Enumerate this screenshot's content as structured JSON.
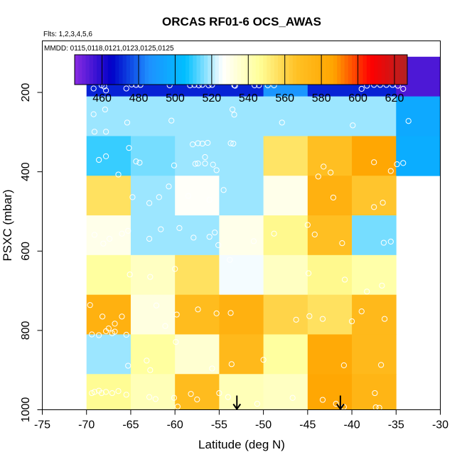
{
  "chart_data": {
    "type": "heatmap",
    "title": "ORCAS RF01-6 OCS_AWAS",
    "flights_label": "Flts: 1,2,3,4,5,6",
    "mmdd_label": "MMDD: 0115,0118,0121,0123,0125,0125",
    "xlabel": "Latitude (deg N)",
    "ylabel": "PSXC (mbar)",
    "xlim": [
      -75,
      -30
    ],
    "ylim": [
      1000,
      70
    ],
    "x_ticks": [
      -75,
      -70,
      -65,
      -60,
      -55,
      -50,
      -45,
      -40,
      -35,
      -30
    ],
    "x_tick_labels": [
      "-75",
      "-70",
      "-65",
      "-60",
      "-55",
      "-50",
      "-45",
      "-40",
      "-35",
      "-30"
    ],
    "y_ticks": [
      200,
      400,
      600,
      800,
      1000
    ],
    "y_tick_labels": [
      "200",
      "400",
      "600",
      "800",
      "1000"
    ],
    "lat_bins": [
      -70,
      -65,
      -60,
      -55,
      -50,
      -45,
      -40,
      -35,
      -30
    ],
    "pressure_bins": [
      110,
      210,
      310,
      410,
      510,
      610,
      710,
      810,
      910,
      1000
    ],
    "colorbar": {
      "range": [
        445,
        627
      ],
      "ticks": [
        460,
        480,
        500,
        520,
        540,
        560,
        580,
        600,
        620
      ],
      "tick_labels": [
        "460",
        "480",
        "500",
        "520",
        "540",
        "560",
        "580",
        "600",
        "620"
      ],
      "colors": [
        "#8a2be2",
        "#0000c8",
        "#1e90ff",
        "#00bfff",
        "#ffffff",
        "#ffff99",
        "#ffc125",
        "#ffa500",
        "#ff0000",
        "#b22222"
      ]
    },
    "values": [
      [
        470,
        470,
        470,
        470,
        488,
        470,
        470,
        454
      ],
      [
        518,
        518,
        518,
        518,
        518,
        518,
        518,
        496
      ],
      [
        510,
        515,
        518,
        518,
        555,
        568,
        585,
        498
      ],
      [
        556,
        518,
        527,
        518,
        530,
        578,
        565,
        null
      ],
      [
        530,
        518,
        518,
        530,
        548,
        568,
        515,
        null
      ],
      [
        545,
        538,
        556,
        525,
        538,
        548,
        543,
        null
      ],
      [
        578,
        532,
        570,
        578,
        560,
        556,
        572,
        null
      ],
      [
        518,
        545,
        535,
        572,
        545,
        583,
        572,
        null
      ],
      [
        547,
        540,
        570,
        540,
        538,
        585,
        575,
        null
      ]
    ],
    "points": [
      [
        -69.2,
        190
      ],
      [
        -68.3,
        182
      ],
      [
        -67.8,
        195
      ],
      [
        -68.0,
        185
      ],
      [
        -65.5,
        190
      ],
      [
        -64.9,
        180
      ],
      [
        -64.4,
        181
      ],
      [
        -63.9,
        181
      ],
      [
        -60.6,
        182
      ],
      [
        -58.3,
        182
      ],
      [
        -57.8,
        181
      ],
      [
        -57.3,
        182
      ],
      [
        -56.9,
        181
      ],
      [
        -56.2,
        182
      ],
      [
        -55.8,
        181
      ],
      [
        -53.3,
        182
      ],
      [
        -53.2,
        183
      ],
      [
        -51.0,
        182
      ],
      [
        -50.5,
        182
      ],
      [
        -49.5,
        182
      ],
      [
        -48.8,
        182
      ],
      [
        -38.9,
        191
      ],
      [
        -38.3,
        183
      ],
      [
        -37.5,
        181
      ],
      [
        -36.8,
        181
      ],
      [
        -36.1,
        181
      ],
      [
        -35.4,
        181
      ],
      [
        -34.8,
        183
      ],
      [
        -34.2,
        191
      ],
      [
        -69.2,
        255
      ],
      [
        -67.9,
        243
      ],
      [
        -69.1,
        299
      ],
      [
        -67.8,
        299
      ],
      [
        -65.4,
        276
      ],
      [
        -60.4,
        271
      ],
      [
        -53.5,
        243
      ],
      [
        -53.3,
        256
      ],
      [
        -47.9,
        276
      ],
      [
        -39.9,
        283
      ],
      [
        -33.6,
        272
      ],
      [
        -65.2,
        340
      ],
      [
        -64.4,
        374
      ],
      [
        -64.0,
        377
      ],
      [
        -68.6,
        370
      ],
      [
        -67.8,
        361
      ],
      [
        -60.1,
        384
      ],
      [
        -57.7,
        380
      ],
      [
        -57.4,
        379
      ],
      [
        -56.6,
        379
      ],
      [
        -55.7,
        382
      ],
      [
        -55.3,
        396
      ],
      [
        -58.0,
        331
      ],
      [
        -57.4,
        328
      ],
      [
        -56.9,
        329
      ],
      [
        -56.3,
        327
      ],
      [
        -56.6,
        363
      ],
      [
        -53.7,
        328
      ],
      [
        -53.4,
        329
      ],
      [
        -43.2,
        387
      ],
      [
        -42.4,
        402
      ],
      [
        -37.5,
        376
      ],
      [
        -34.9,
        381
      ],
      [
        -34.2,
        378
      ],
      [
        -35.6,
        398
      ],
      [
        -66.4,
        407
      ],
      [
        -64.8,
        464
      ],
      [
        -62.9,
        479
      ],
      [
        -61.8,
        464
      ],
      [
        -60.7,
        437
      ],
      [
        -58.5,
        461
      ],
      [
        -56.1,
        471
      ],
      [
        -54.5,
        446
      ],
      [
        -43.8,
        412
      ],
      [
        -42.1,
        465
      ],
      [
        -37.5,
        489
      ],
      [
        -36.5,
        478
      ],
      [
        -69.1,
        559
      ],
      [
        -68.1,
        581
      ],
      [
        -67.4,
        569
      ],
      [
        -66.0,
        556
      ],
      [
        -65.3,
        549
      ],
      [
        -62.9,
        569
      ],
      [
        -61.6,
        545
      ],
      [
        -59.5,
        542
      ],
      [
        -57.9,
        566
      ],
      [
        -55.5,
        553
      ],
      [
        -56.1,
        564
      ],
      [
        -55.1,
        585
      ],
      [
        -51.1,
        575
      ],
      [
        -41.1,
        580
      ],
      [
        -36.4,
        579
      ],
      [
        -35.6,
        576
      ],
      [
        -45.0,
        534
      ],
      [
        -48.8,
        556
      ],
      [
        -44.2,
        558
      ],
      [
        -65.1,
        659
      ],
      [
        -62.8,
        665
      ],
      [
        -60.0,
        645
      ],
      [
        -53.8,
        622
      ],
      [
        -44.9,
        656
      ],
      [
        -40.8,
        672
      ],
      [
        -36.6,
        687
      ],
      [
        -38.3,
        702
      ],
      [
        -69.6,
        736
      ],
      [
        -68.2,
        765
      ],
      [
        -67.5,
        795
      ],
      [
        -66.0,
        765
      ],
      [
        -66.8,
        783
      ],
      [
        -62.1,
        737
      ],
      [
        -61.1,
        789
      ],
      [
        -57.4,
        747
      ],
      [
        -55.3,
        757
      ],
      [
        -53.7,
        756
      ],
      [
        -46.3,
        773
      ],
      [
        -43.3,
        771
      ],
      [
        -38.9,
        752
      ],
      [
        -36.3,
        771
      ],
      [
        -40.0,
        777
      ],
      [
        -59.8,
        760
      ],
      [
        -44.8,
        764
      ],
      [
        -69.4,
        810
      ],
      [
        -68.6,
        812
      ],
      [
        -67.8,
        802
      ],
      [
        -67.1,
        807
      ],
      [
        -66.8,
        803
      ],
      [
        -65.5,
        811
      ],
      [
        -65.3,
        889
      ],
      [
        -63.2,
        876
      ],
      [
        -62.8,
        900
      ],
      [
        -59.9,
        829
      ],
      [
        -55.8,
        896
      ],
      [
        -53.6,
        885
      ],
      [
        -50.0,
        874
      ],
      [
        -40.9,
        888
      ],
      [
        -36.7,
        887
      ],
      [
        -69.4,
        958
      ],
      [
        -69.1,
        955
      ],
      [
        -68.6,
        952
      ],
      [
        -68.3,
        958
      ],
      [
        -67.8,
        955
      ],
      [
        -67.1,
        958
      ],
      [
        -66.4,
        953
      ],
      [
        -65.5,
        962
      ],
      [
        -62.9,
        968
      ],
      [
        -62.2,
        973
      ],
      [
        -60.1,
        970
      ],
      [
        -59.7,
        992
      ],
      [
        -58.2,
        960
      ],
      [
        -57.5,
        974
      ],
      [
        -55.0,
        958
      ],
      [
        -54.0,
        968
      ],
      [
        -50.7,
        985
      ],
      [
        -43.3,
        975
      ],
      [
        -41.8,
        985
      ],
      [
        -40.9,
        993
      ],
      [
        -37.3,
        994
      ],
      [
        -36.9,
        995
      ],
      [
        -37.4,
        958
      ],
      [
        -46.7,
        970
      ]
    ],
    "arrows_at_latitude": [
      -53,
      -41.3
    ]
  }
}
